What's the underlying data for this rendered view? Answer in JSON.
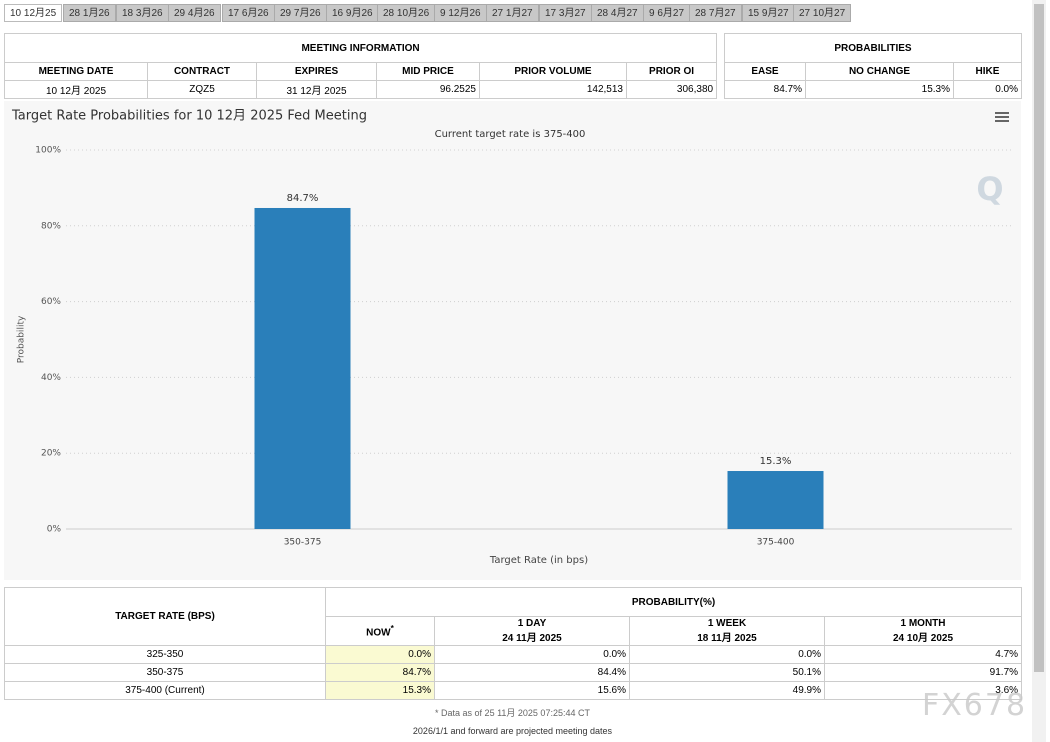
{
  "tabs": [
    "10 12月25",
    "28 1月26",
    "18 3月26",
    "29 4月26",
    "17 6月26",
    "29 7月26",
    "16 9月26",
    "28 10月26",
    "9 12月26",
    "27 1月27",
    "17 3月27",
    "28 4月27",
    "9 6月27",
    "28 7月27",
    "15 9月27",
    "27 10月27"
  ],
  "meeting_info": {
    "title": "MEETING INFORMATION",
    "headers": [
      "MEETING DATE",
      "CONTRACT",
      "EXPIRES",
      "MID PRICE",
      "PRIOR VOLUME",
      "PRIOR OI"
    ],
    "row": [
      "10 12月 2025",
      "ZQZ5",
      "31 12月 2025",
      "96.2525",
      "142,513",
      "306,380"
    ]
  },
  "probabilities": {
    "title": "PROBABILITIES",
    "headers": [
      "EASE",
      "NO CHANGE",
      "HIKE"
    ],
    "row": [
      "84.7%",
      "15.3%",
      "0.0%"
    ]
  },
  "chart_data": {
    "type": "bar",
    "title": "Target Rate Probabilities for 10 12月 2025 Fed Meeting",
    "subtitle": "Current target rate is 375-400",
    "x_label": "Target Rate (in bps)",
    "y_label": "Probability",
    "categories": [
      "350-375",
      "375-400"
    ],
    "values": [
      84.7,
      15.3
    ],
    "value_labels": [
      "84.7%",
      "15.3%"
    ],
    "color": "#2a7fba",
    "ylim": [
      0,
      100
    ],
    "yticks": [
      {
        "value": 0,
        "label": "0%"
      },
      {
        "value": 20,
        "label": "20%"
      },
      {
        "value": 40,
        "label": "40%"
      },
      {
        "value": 60,
        "label": "60%"
      },
      {
        "value": 80,
        "label": "80%"
      },
      {
        "value": 100,
        "label": "100%"
      }
    ],
    "grid": true
  },
  "prob_table": {
    "rate_header": "TARGET RATE (BPS)",
    "prob_header": "PROBABILITY(%)",
    "columns": [
      {
        "label": "NOW",
        "note": "*"
      },
      {
        "label": "1 DAY",
        "date": "24 11月 2025"
      },
      {
        "label": "1 WEEK",
        "date": "18 11月 2025"
      },
      {
        "label": "1 MONTH",
        "date": "24 10月 2025"
      }
    ],
    "rows": [
      [
        "325-350",
        "0.0%",
        "0.0%",
        "0.0%",
        "4.7%"
      ],
      [
        "350-375",
        "84.7%",
        "84.4%",
        "50.1%",
        "91.7%"
      ],
      [
        "375-400 (Current)",
        "15.3%",
        "15.6%",
        "49.9%",
        "3.6%"
      ]
    ],
    "footnote": "* Data as of 25 11月 2025 07:25:44 CT",
    "projected_note": "2026/1/1 and forward are projected meeting dates"
  },
  "watermark": "FX678"
}
